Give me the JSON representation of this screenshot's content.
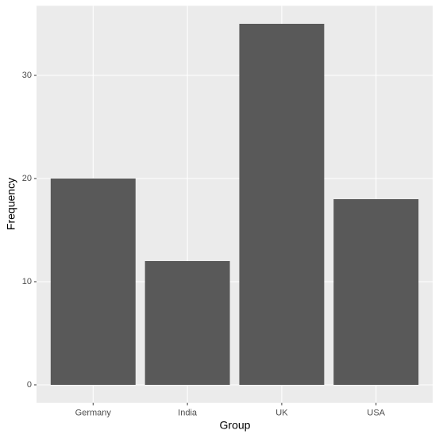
{
  "chart_data": {
    "type": "bar",
    "x_label": "Group",
    "y_label": "Frequency",
    "categories": [
      "Germany",
      "India",
      "UK",
      "USA"
    ],
    "values": [
      20,
      12,
      35,
      18
    ],
    "color": "#595959",
    "ylim": [
      -1.75,
      36.75
    ],
    "yticks": [
      0,
      10,
      20,
      30
    ],
    "grid": true
  }
}
